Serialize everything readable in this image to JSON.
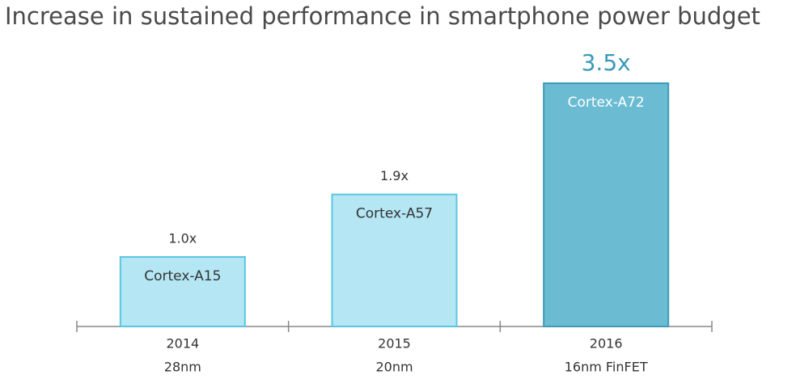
{
  "chart_data": {
    "type": "bar",
    "title": "Increase in sustained performance in smartphone power budget",
    "categories": [
      "2014",
      "2015",
      "2016"
    ],
    "process": [
      "28nm",
      "20nm",
      "16nm FinFET"
    ],
    "bar_labels": [
      "Cortex-A15",
      "Cortex-A57",
      "Cortex-A72"
    ],
    "values": [
      1.0,
      1.9,
      3.5
    ],
    "value_labels": [
      "1.0x",
      "1.9x",
      "3.5x"
    ],
    "colors": [
      "#b4e6f4",
      "#b4e6f4",
      "#6bbcd3"
    ],
    "highlight": 2
  }
}
